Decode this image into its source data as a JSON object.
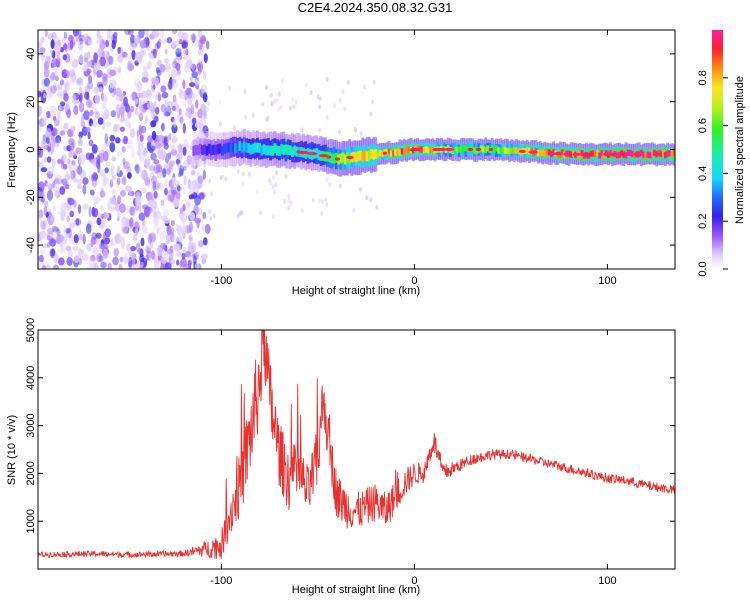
{
  "chart_data": [
    {
      "type": "heatmap",
      "title": "C2E4.2024.350.08.32.G31",
      "xlabel": "Height of straight line (km)",
      "ylabel": "Frequency (Hz)",
      "xlim": [
        -195,
        135
      ],
      "ylim": [
        -50,
        50
      ],
      "xticks": [
        -100,
        0,
        100
      ],
      "yticks": [
        -40,
        -20,
        0,
        20,
        40
      ],
      "colorbar": {
        "label": "Normalized spectral amplitude",
        "range": [
          0.0,
          1.0
        ],
        "ticks": [
          0.0,
          0.2,
          0.4,
          0.6,
          0.8
        ],
        "colormap": "rainbow (magenta-blue-cyan-green-yellow-red)"
      },
      "noise_region_x": [
        -195,
        -107
      ],
      "signal_track": {
        "x": [
          -115,
          -100,
          -90,
          -80,
          -70,
          -60,
          -50,
          -40,
          -30,
          -20,
          -10,
          0,
          10,
          20,
          40,
          60,
          80,
          100,
          120,
          135
        ],
        "y": [
          0,
          0,
          1,
          0,
          0,
          -1,
          -2,
          -4,
          -3,
          -2,
          -1,
          0,
          0,
          0,
          0,
          -1,
          -2,
          -2,
          -2,
          -2
        ],
        "amplitude": [
          0.15,
          0.25,
          0.35,
          0.4,
          0.45,
          0.4,
          0.45,
          0.6,
          0.7,
          0.75,
          0.8,
          0.85,
          0.7,
          0.6,
          0.6,
          0.8,
          0.9,
          0.95,
          0.95,
          0.95
        ]
      }
    },
    {
      "type": "line",
      "xlabel": "Height of straight line (km)",
      "ylabel": "SNR (10 * v/v)",
      "xlim": [
        -195,
        135
      ],
      "ylim": [
        0,
        5000
      ],
      "xticks": [
        -100,
        0,
        100
      ],
      "yticks": [
        1000,
        2000,
        3000,
        4000,
        5000
      ],
      "series": [
        {
          "color": "#e8312f",
          "x": [
            -195,
            -180,
            -165,
            -150,
            -135,
            -120,
            -110,
            -100,
            -95,
            -90,
            -85,
            -80,
            -78,
            -75,
            -70,
            -65,
            -60,
            -55,
            -50,
            -47,
            -45,
            -40,
            -35,
            -30,
            -25,
            -20,
            -15,
            -10,
            -5,
            0,
            5,
            10,
            15,
            20,
            25,
            30,
            40,
            50,
            60,
            70,
            80,
            90,
            100,
            110,
            120,
            135
          ],
          "y": [
            300,
            310,
            320,
            300,
            310,
            320,
            400,
            500,
            1200,
            1800,
            2800,
            4000,
            4900,
            3600,
            2400,
            1900,
            2000,
            1600,
            2300,
            3700,
            2800,
            1500,
            1300,
            1200,
            1300,
            1400,
            1200,
            1500,
            1800,
            2000,
            2000,
            2700,
            2000,
            2100,
            2200,
            2300,
            2400,
            2400,
            2300,
            2200,
            2100,
            2000,
            1900,
            1850,
            1750,
            1650
          ],
          "noise_amplitude": [
            60,
            60,
            60,
            60,
            60,
            60,
            150,
            300,
            500,
            700,
            900,
            1000,
            800,
            900,
            700,
            700,
            650,
            550,
            700,
            600,
            550,
            500,
            450,
            400,
            400,
            400,
            400,
            350,
            300,
            250,
            200,
            250,
            200,
            150,
            130,
            120,
            110,
            100,
            100,
            100,
            100,
            100,
            100,
            100,
            100,
            100
          ]
        }
      ]
    }
  ]
}
